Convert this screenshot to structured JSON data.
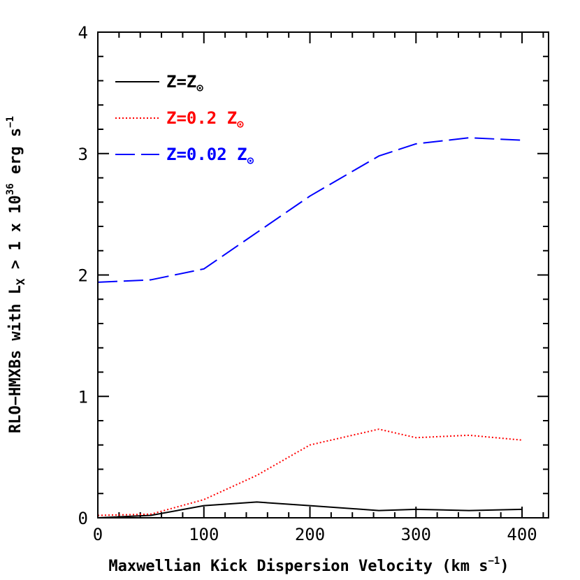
{
  "chart_data": {
    "type": "line",
    "title": "",
    "xlabel": {
      "main": "Maxwellian Kick Dispersion Velocity (km s",
      "sup": "−1",
      "close": ")"
    },
    "ylabel": {
      "part1": "RLO−HMXBs with L",
      "sub": "X",
      "part2": " > 1 x 10",
      "sup": "36",
      "part3": " erg s",
      "sup2": "−1"
    },
    "xlim": [
      0,
      425
    ],
    "ylim": [
      0,
      4
    ],
    "xticks": [
      0,
      100,
      200,
      300,
      400
    ],
    "xtick_labels": [
      "0",
      "100",
      "200",
      "300",
      "400"
    ],
    "yticks": [
      0,
      1,
      2,
      3,
      4
    ],
    "ytick_labels": [
      "0",
      "1",
      "2",
      "3",
      "4"
    ],
    "x_minor_step": 20,
    "y_minor_step": 0.2,
    "grid": false,
    "legend_position": "top-left",
    "series": [
      {
        "name": "Z=Z",
        "name_sub": "⊙",
        "color": "#000000",
        "dash": "solid",
        "x": [
          0,
          50,
          100,
          150,
          200,
          265,
          300,
          350,
          400
        ],
        "y": [
          0.0,
          0.02,
          0.1,
          0.13,
          0.1,
          0.06,
          0.07,
          0.06,
          0.07
        ]
      },
      {
        "name": "Z=0.2 Z",
        "name_sub": "⊙",
        "color": "#ff0000",
        "dash": "dotted",
        "x": [
          0,
          50,
          100,
          150,
          200,
          265,
          300,
          350,
          400
        ],
        "y": [
          0.02,
          0.03,
          0.15,
          0.35,
          0.6,
          0.73,
          0.66,
          0.68,
          0.64
        ]
      },
      {
        "name": "Z=0.02 Z",
        "name_sub": "⊙",
        "color": "#0000ff",
        "dash": "dashed",
        "x": [
          0,
          50,
          100,
          150,
          200,
          265,
          300,
          350,
          400
        ],
        "y": [
          1.94,
          1.96,
          2.05,
          2.35,
          2.65,
          2.98,
          3.08,
          3.13,
          3.11
        ]
      }
    ]
  }
}
